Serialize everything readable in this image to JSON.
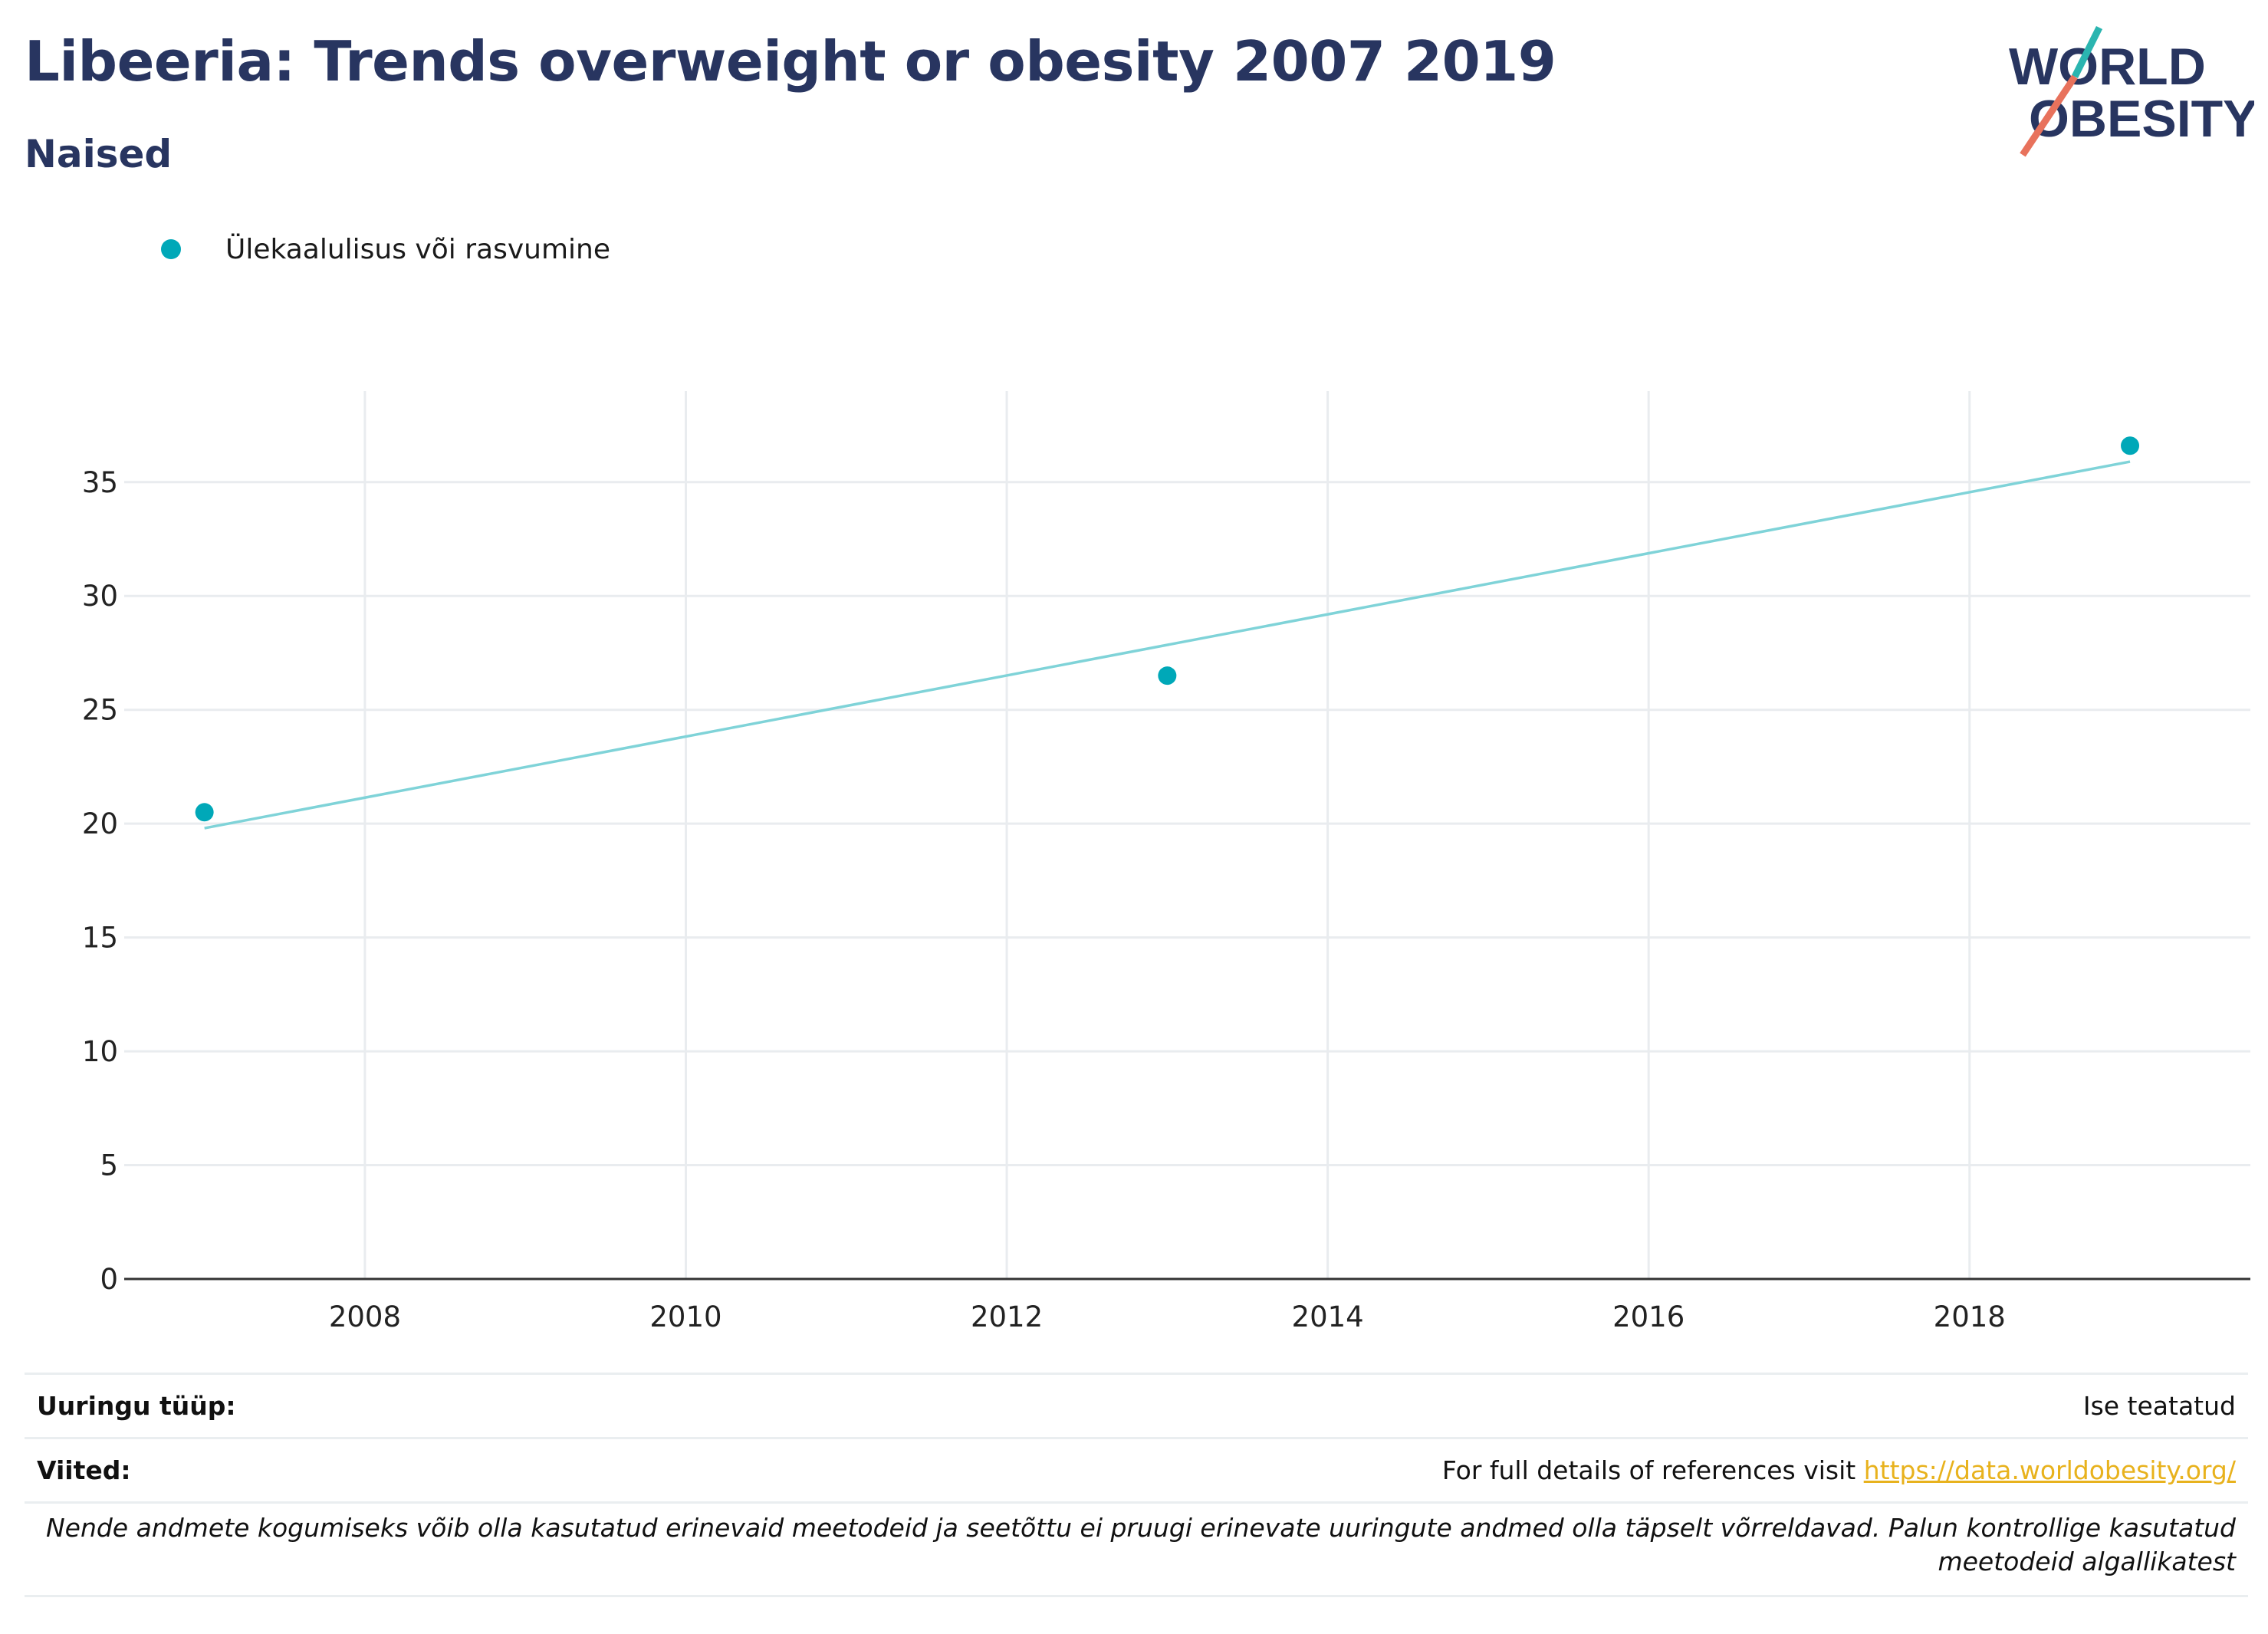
{
  "header": {
    "title": "Libeeria: Trends overweight or obesity 2007 2019",
    "subtitle": "Naised"
  },
  "logo": {
    "line1": "WORLD",
    "line2": "OBESITY",
    "colors": {
      "text": "#283560",
      "slash_top": "#2bb5b0",
      "slash_bottom": "#e8725c"
    }
  },
  "legend": {
    "label": "Ülekaalulisus või rasvumine"
  },
  "colors": {
    "series": "#00a8b8",
    "trend": "#7fd3d8",
    "grid": "#e9ecef",
    "axis": "#333333",
    "title": "#283560",
    "link": "#e8b21d"
  },
  "chart_data": {
    "type": "scatter",
    "title": "Libeeria: Trends overweight or obesity 2007 2019",
    "subtitle": "Naised",
    "xlabel": "",
    "ylabel": "",
    "xlim": [
      2006.5,
      2019.75
    ],
    "ylim": [
      0,
      39
    ],
    "xticks": [
      2008,
      2010,
      2012,
      2014,
      2016,
      2018
    ],
    "yticks": [
      0,
      5,
      10,
      15,
      20,
      25,
      30,
      35
    ],
    "grid": true,
    "legend_position": "top-left",
    "series": [
      {
        "name": "Ülekaalulisus või rasvumine",
        "points": [
          {
            "x": 2007,
            "y": 20.5
          },
          {
            "x": 2013,
            "y": 26.5
          },
          {
            "x": 2019,
            "y": 36.6
          }
        ]
      }
    ],
    "trendline": {
      "from": {
        "x": 2007,
        "y": 19.8
      },
      "to": {
        "x": 2019,
        "y": 35.9
      }
    }
  },
  "footer": {
    "survey_label": "Uuringu tüüp:",
    "survey_value": "Ise teatatud",
    "refs_label": "Viited:",
    "refs_text": "For full details of references visit ",
    "refs_link": "https://data.worldobesity.org/",
    "note": "Nende andmete kogumiseks võib olla kasutatud erinevaid meetodeid ja seetõttu ei pruugi erinevate uuringute andmed olla täpselt võrreldavad. Palun kontrollige kasutatud meetodeid algallikatest"
  }
}
